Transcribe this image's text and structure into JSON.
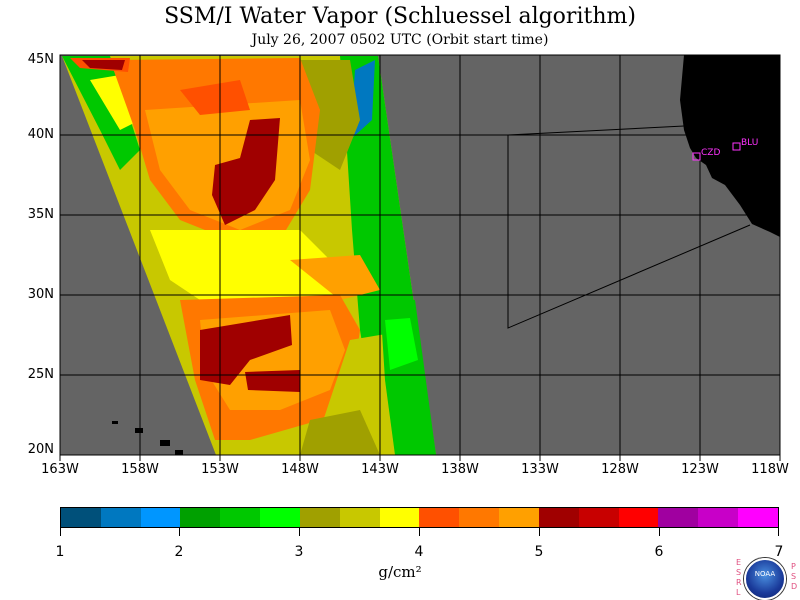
{
  "title": "SSM/I Water Vapor (Schluessel algorithm)",
  "subtitle": "July 26, 2007  0502 UTC  (Orbit start time)",
  "axes": {
    "lat_labels": [
      "45N",
      "40N",
      "35N",
      "30N",
      "25N",
      "20N"
    ],
    "lon_labels": [
      "163W",
      "158W",
      "153W",
      "148W",
      "143W",
      "138W",
      "133W",
      "128W",
      "123W",
      "118W"
    ]
  },
  "stations": [
    {
      "label": "CZD"
    },
    {
      "label": "BLU"
    }
  ],
  "colorbar": {
    "labels": [
      "1",
      "2",
      "3",
      "4",
      "5",
      "6",
      "7"
    ],
    "units": "g/cm²",
    "colors": [
      "#00507a",
      "#0078c0",
      "#0096ff",
      "#00a000",
      "#00c800",
      "#00ff00",
      "#a0a000",
      "#c8c800",
      "#ffff00",
      "#ff5000",
      "#ff7800",
      "#ffa000",
      "#a00000",
      "#c80000",
      "#ff0000",
      "#a000a0",
      "#c800c8",
      "#ff00ff"
    ]
  },
  "colors": {
    "ocean_missing": "#646464",
    "land": "#000000",
    "grid": "#000000",
    "station": "#ff33ff"
  },
  "logo": {
    "left_letters": [
      "E",
      "S",
      "R",
      "L"
    ],
    "right_letters": [
      "P",
      "S",
      "D"
    ],
    "name": "NOAA"
  }
}
